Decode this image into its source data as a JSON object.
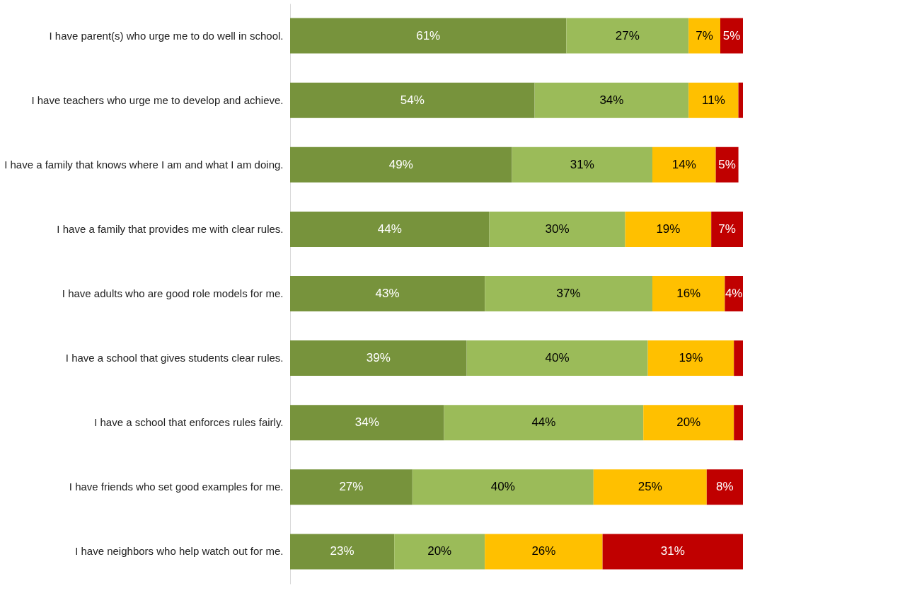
{
  "chart_data": {
    "type": "bar",
    "orientation": "horizontal",
    "stacked": true,
    "tick_labels": "y",
    "xlim": [
      0,
      100
    ],
    "categories": [
      "I have parent(s) who urge me to do well in school.",
      "I have teachers who urge me to develop and achieve.",
      "I have a family that knows where I am and what I am doing.",
      "I have a family that provides me with clear rules.",
      "I have adults who are good role models for me.",
      "I have a school that gives students clear rules.",
      "I have a school that enforces rules fairly.",
      "I have friends who set good examples for me.",
      "I have neighbors who help watch out for me."
    ],
    "series": [
      {
        "color": "#77933c",
        "values": [
          61,
          54,
          49,
          44,
          43,
          39,
          34,
          27,
          23
        ],
        "value_labels": [
          "61%",
          "54%",
          "49%",
          "44%",
          "43%",
          "39%",
          "34%",
          "27%",
          "23%"
        ]
      },
      {
        "color": "#9bbb59",
        "values": [
          27,
          34,
          31,
          30,
          37,
          40,
          44,
          40,
          20
        ],
        "value_labels": [
          "27%",
          "34%",
          "31%",
          "30%",
          "37%",
          "40%",
          "44%",
          "40%",
          "20%"
        ]
      },
      {
        "color": "#ffc000",
        "values": [
          7,
          11,
          14,
          19,
          16,
          19,
          20,
          25,
          26
        ],
        "value_labels": [
          "7%",
          "11%",
          "14%",
          "19%",
          "16%",
          "19%",
          "20%",
          "25%",
          "26%"
        ]
      },
      {
        "color": "#c00000",
        "values": [
          5,
          1,
          5,
          7,
          4,
          2,
          2,
          8,
          31
        ],
        "value_labels": [
          "5%",
          null,
          "5%",
          "7%",
          "4%",
          null,
          null,
          "8%",
          "31%"
        ]
      }
    ]
  }
}
